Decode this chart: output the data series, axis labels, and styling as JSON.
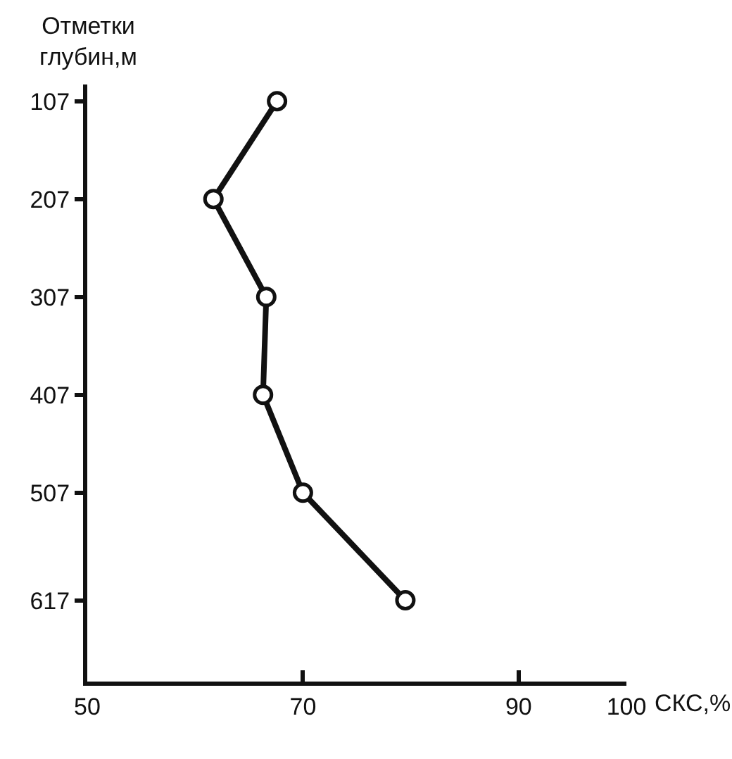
{
  "chart_data": {
    "type": "line",
    "xlabel": "СКС,%",
    "ylabel": "Отметки глубин,м",
    "x": [
      67.6,
      61.7,
      66.6,
      66.3,
      70,
      79.5
    ],
    "series": [
      {
        "color": "#111111",
        "values": [
          107,
          207,
          307,
          407,
          507,
          617
        ]
      }
    ],
    "xlim": [
      50,
      100
    ],
    "xticks": [
      50,
      70,
      90,
      100
    ],
    "ylim": [
      700,
      90
    ],
    "yticks": [
      107,
      207,
      307,
      407,
      507,
      617
    ],
    "marker": "circle",
    "line_style": "solid"
  }
}
